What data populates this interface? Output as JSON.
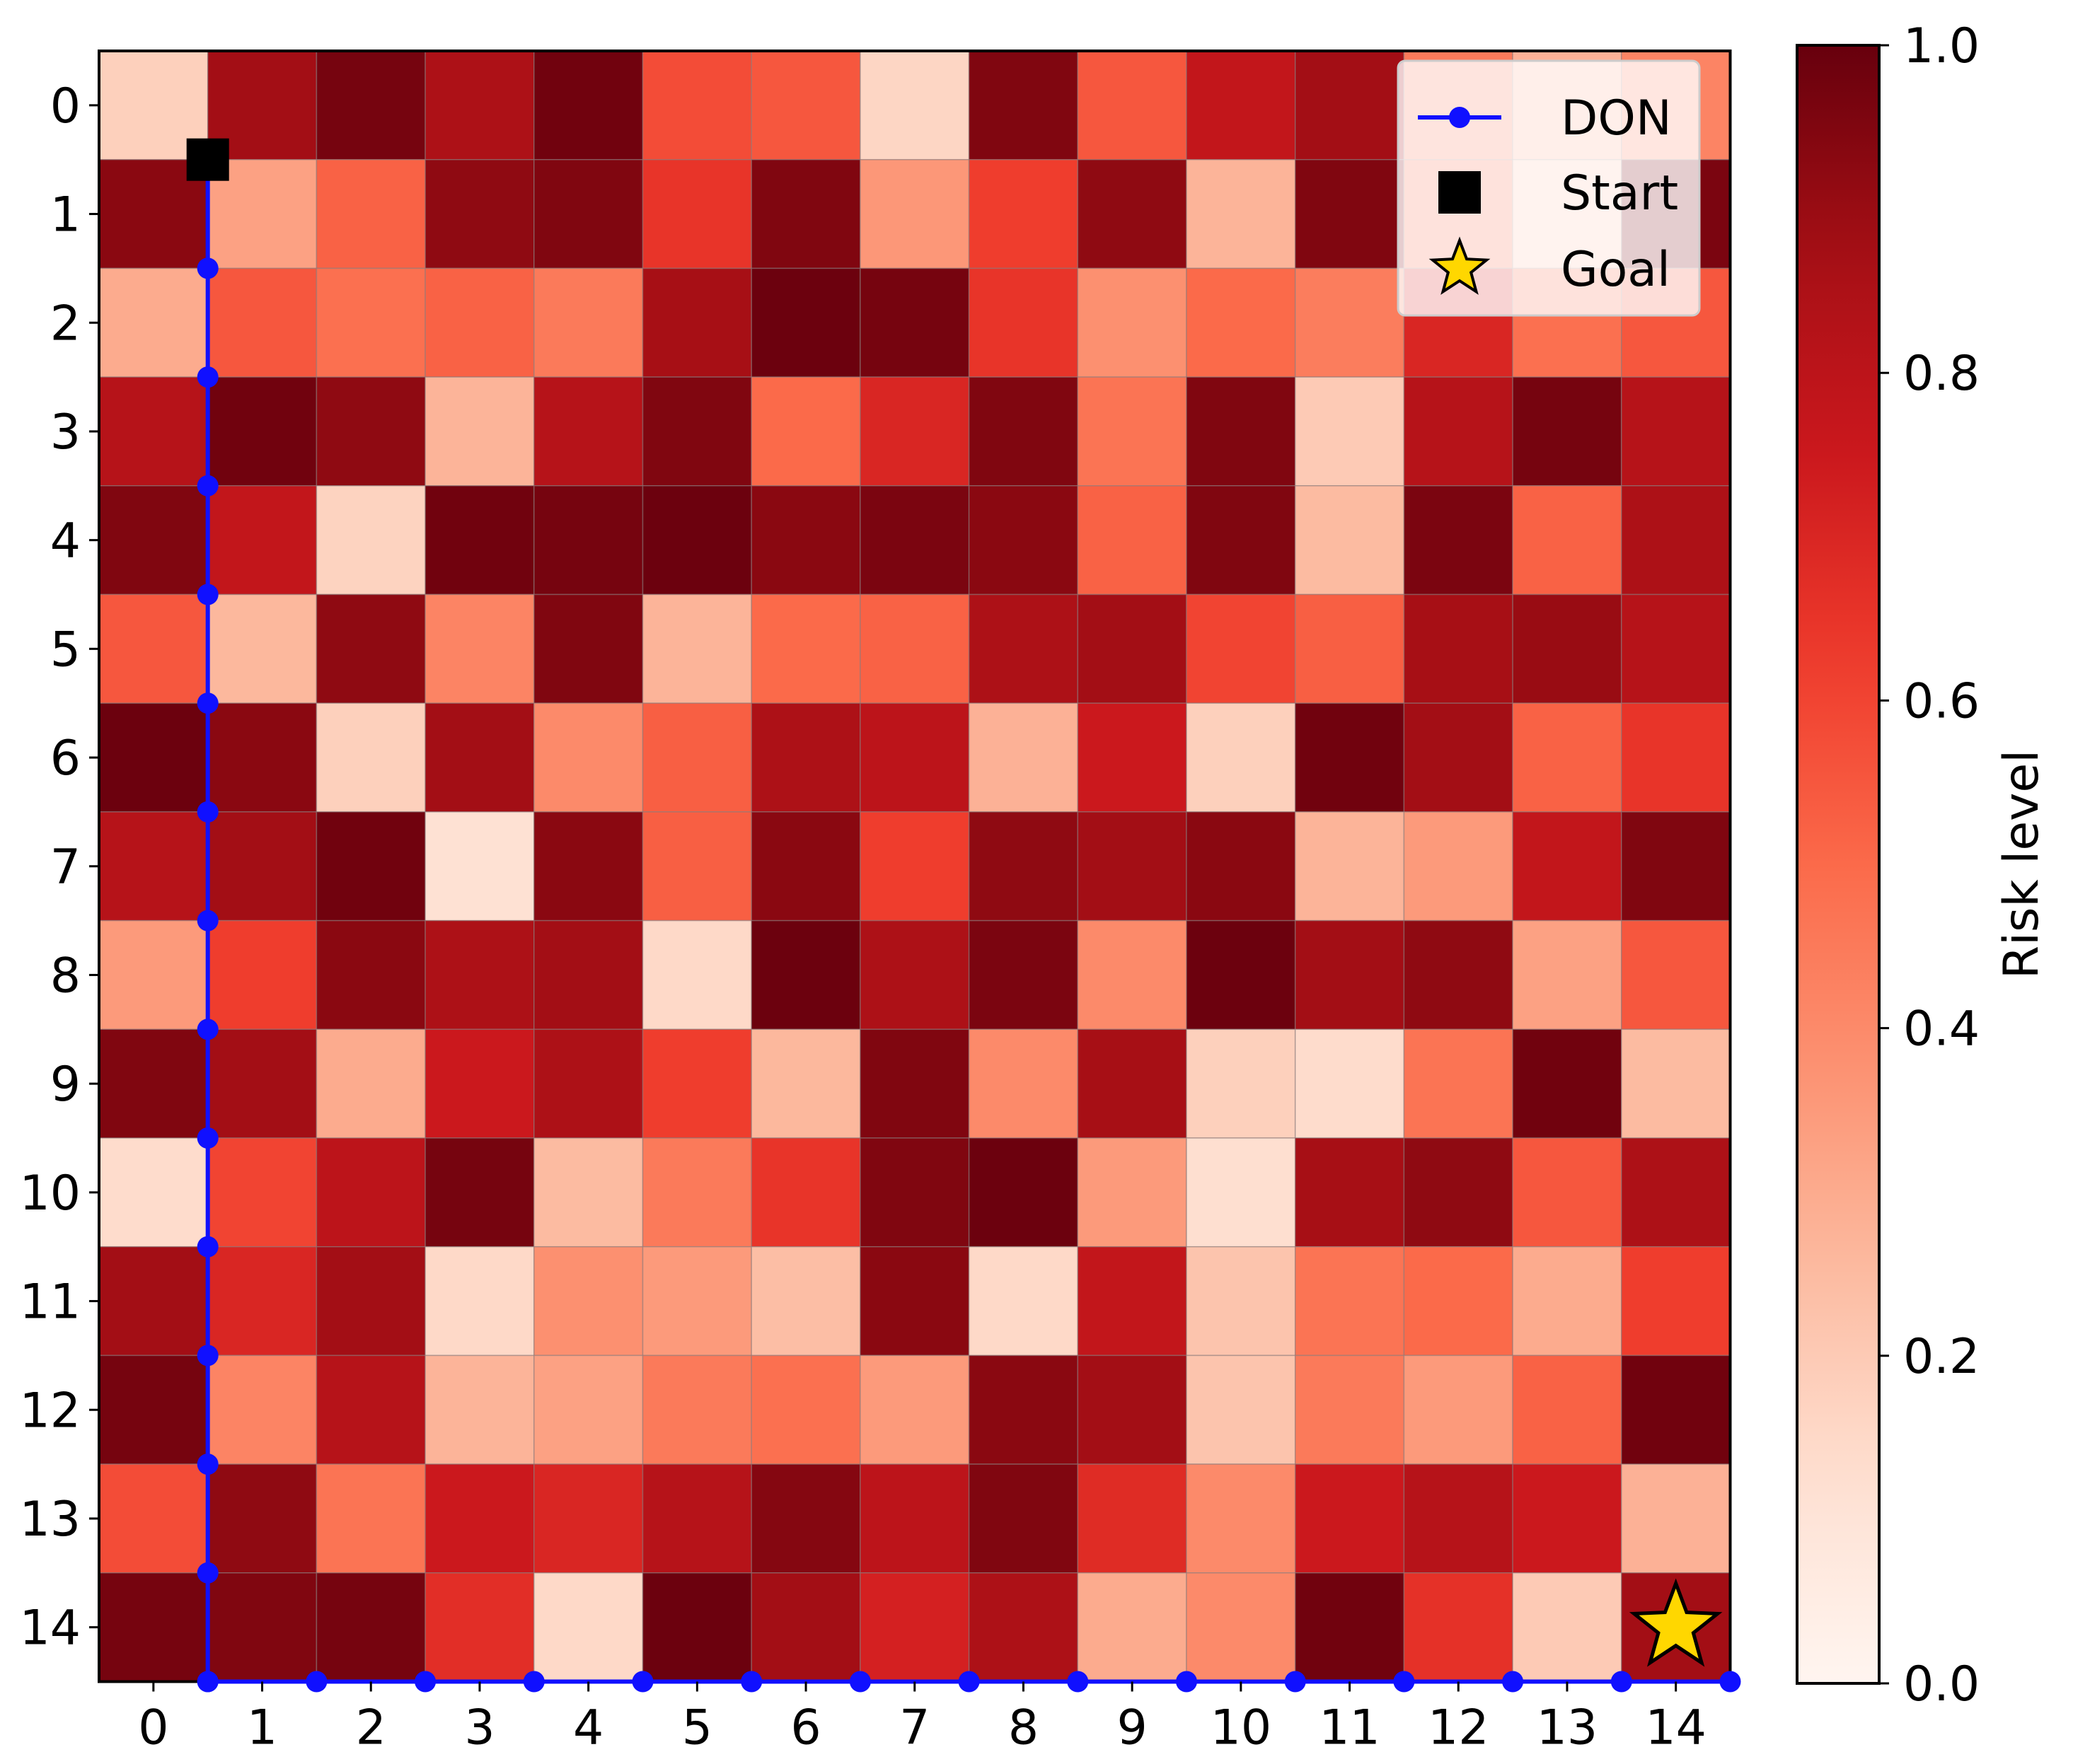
{
  "chart_data": {
    "type": "heatmap",
    "title": "",
    "x_ticks": [
      "0",
      "1",
      "2",
      "3",
      "4",
      "5",
      "6",
      "7",
      "8",
      "9",
      "10",
      "11",
      "12",
      "13",
      "14"
    ],
    "y_ticks": [
      "0",
      "1",
      "2",
      "3",
      "4",
      "5",
      "6",
      "7",
      "8",
      "9",
      "10",
      "11",
      "12",
      "13",
      "14"
    ],
    "colorbar": {
      "label": "Risk level",
      "range": [
        0.0,
        1.0
      ],
      "ticks": [
        0.0,
        0.2,
        0.4,
        0.6,
        0.8,
        1.0
      ],
      "tick_labels": [
        "0.0",
        "0.2",
        "0.4",
        "0.6",
        "0.8",
        "1.0"
      ],
      "colormap": "Reds"
    },
    "grid_values": [
      [
        0.18,
        0.88,
        0.97,
        0.85,
        0.98,
        0.58,
        0.55,
        0.16,
        0.95,
        0.55,
        0.78,
        0.88,
        0.45,
        0.28,
        0.42
      ],
      [
        0.93,
        0.33,
        0.52,
        0.92,
        0.95,
        0.65,
        0.95,
        0.36,
        0.62,
        0.92,
        0.27,
        0.95,
        0.48,
        0.22,
        0.96
      ],
      [
        0.3,
        0.55,
        0.48,
        0.52,
        0.45,
        0.87,
        0.99,
        0.97,
        0.65,
        0.38,
        0.5,
        0.44,
        0.7,
        0.48,
        0.55
      ],
      [
        0.82,
        0.98,
        0.92,
        0.27,
        0.82,
        0.95,
        0.5,
        0.7,
        0.95,
        0.47,
        0.95,
        0.2,
        0.82,
        0.97,
        0.82
      ],
      [
        0.95,
        0.78,
        0.17,
        0.98,
        0.97,
        0.99,
        0.93,
        0.96,
        0.93,
        0.52,
        0.95,
        0.25,
        0.96,
        0.52,
        0.85
      ],
      [
        0.55,
        0.26,
        0.92,
        0.42,
        0.95,
        0.27,
        0.5,
        0.52,
        0.85,
        0.88,
        0.6,
        0.53,
        0.87,
        0.9,
        0.82
      ],
      [
        0.99,
        0.93,
        0.18,
        0.88,
        0.4,
        0.53,
        0.85,
        0.8,
        0.28,
        0.75,
        0.18,
        0.98,
        0.88,
        0.52,
        0.65
      ],
      [
        0.82,
        0.88,
        0.98,
        0.12,
        0.93,
        0.53,
        0.93,
        0.62,
        0.92,
        0.88,
        0.93,
        0.27,
        0.35,
        0.78,
        0.95
      ],
      [
        0.35,
        0.62,
        0.93,
        0.85,
        0.88,
        0.15,
        0.99,
        0.85,
        0.96,
        0.4,
        0.99,
        0.88,
        0.92,
        0.33,
        0.55
      ],
      [
        0.95,
        0.88,
        0.3,
        0.75,
        0.85,
        0.62,
        0.26,
        0.95,
        0.4,
        0.87,
        0.18,
        0.14,
        0.47,
        0.98,
        0.25
      ],
      [
        0.14,
        0.6,
        0.8,
        0.97,
        0.25,
        0.45,
        0.65,
        0.95,
        0.99,
        0.35,
        0.13,
        0.87,
        0.92,
        0.55,
        0.85
      ],
      [
        0.88,
        0.7,
        0.88,
        0.15,
        0.38,
        0.35,
        0.24,
        0.93,
        0.15,
        0.78,
        0.22,
        0.47,
        0.5,
        0.3,
        0.62
      ],
      [
        0.97,
        0.42,
        0.82,
        0.27,
        0.33,
        0.45,
        0.48,
        0.35,
        0.93,
        0.88,
        0.22,
        0.45,
        0.35,
        0.52,
        0.98
      ],
      [
        0.58,
        0.92,
        0.47,
        0.75,
        0.7,
        0.82,
        0.94,
        0.8,
        0.95,
        0.68,
        0.4,
        0.75,
        0.82,
        0.75,
        0.28
      ],
      [
        0.97,
        0.95,
        0.97,
        0.67,
        0.15,
        0.99,
        0.88,
        0.72,
        0.85,
        0.3,
        0.4,
        0.98,
        0.66,
        0.2,
        0.88
      ]
    ],
    "series": [
      {
        "name": "DON",
        "color": "#1010ff",
        "marker": "circle",
        "x": [
          0.5,
          0.5,
          0.5,
          0.5,
          0.5,
          0.5,
          0.5,
          0.5,
          0.5,
          0.5,
          0.5,
          0.5,
          0.5,
          0.5,
          0.5,
          0.5,
          1.5,
          2.5,
          3.5,
          4.5,
          5.5,
          6.5,
          7.5,
          8.5,
          9.5,
          10.5,
          11.5,
          12.5,
          13.5,
          14.5
        ],
        "y": [
          0.5,
          1.5,
          2.5,
          3.5,
          4.5,
          5.5,
          6.5,
          7.5,
          8.5,
          9.5,
          10.5,
          11.5,
          12.5,
          13.5,
          14.5,
          14.5,
          14.5,
          14.5,
          14.5,
          14.5,
          14.5,
          14.5,
          14.5,
          14.5,
          14.5,
          14.5,
          14.5,
          14.5,
          14.5,
          14.5
        ]
      }
    ],
    "start": {
      "name": "Start",
      "x": 0.5,
      "y": 0.5,
      "marker": "square",
      "color": "#000000"
    },
    "goal": {
      "name": "Goal",
      "x": 14.5,
      "y": 14.5,
      "marker": "star",
      "color": "#ffd700"
    },
    "legend": {
      "position": "top-right",
      "entries": [
        "DON",
        "Start",
        "Goal"
      ]
    },
    "xlim": [
      -0.5,
      14.5
    ],
    "ylim": [
      14.5,
      -0.5
    ]
  }
}
